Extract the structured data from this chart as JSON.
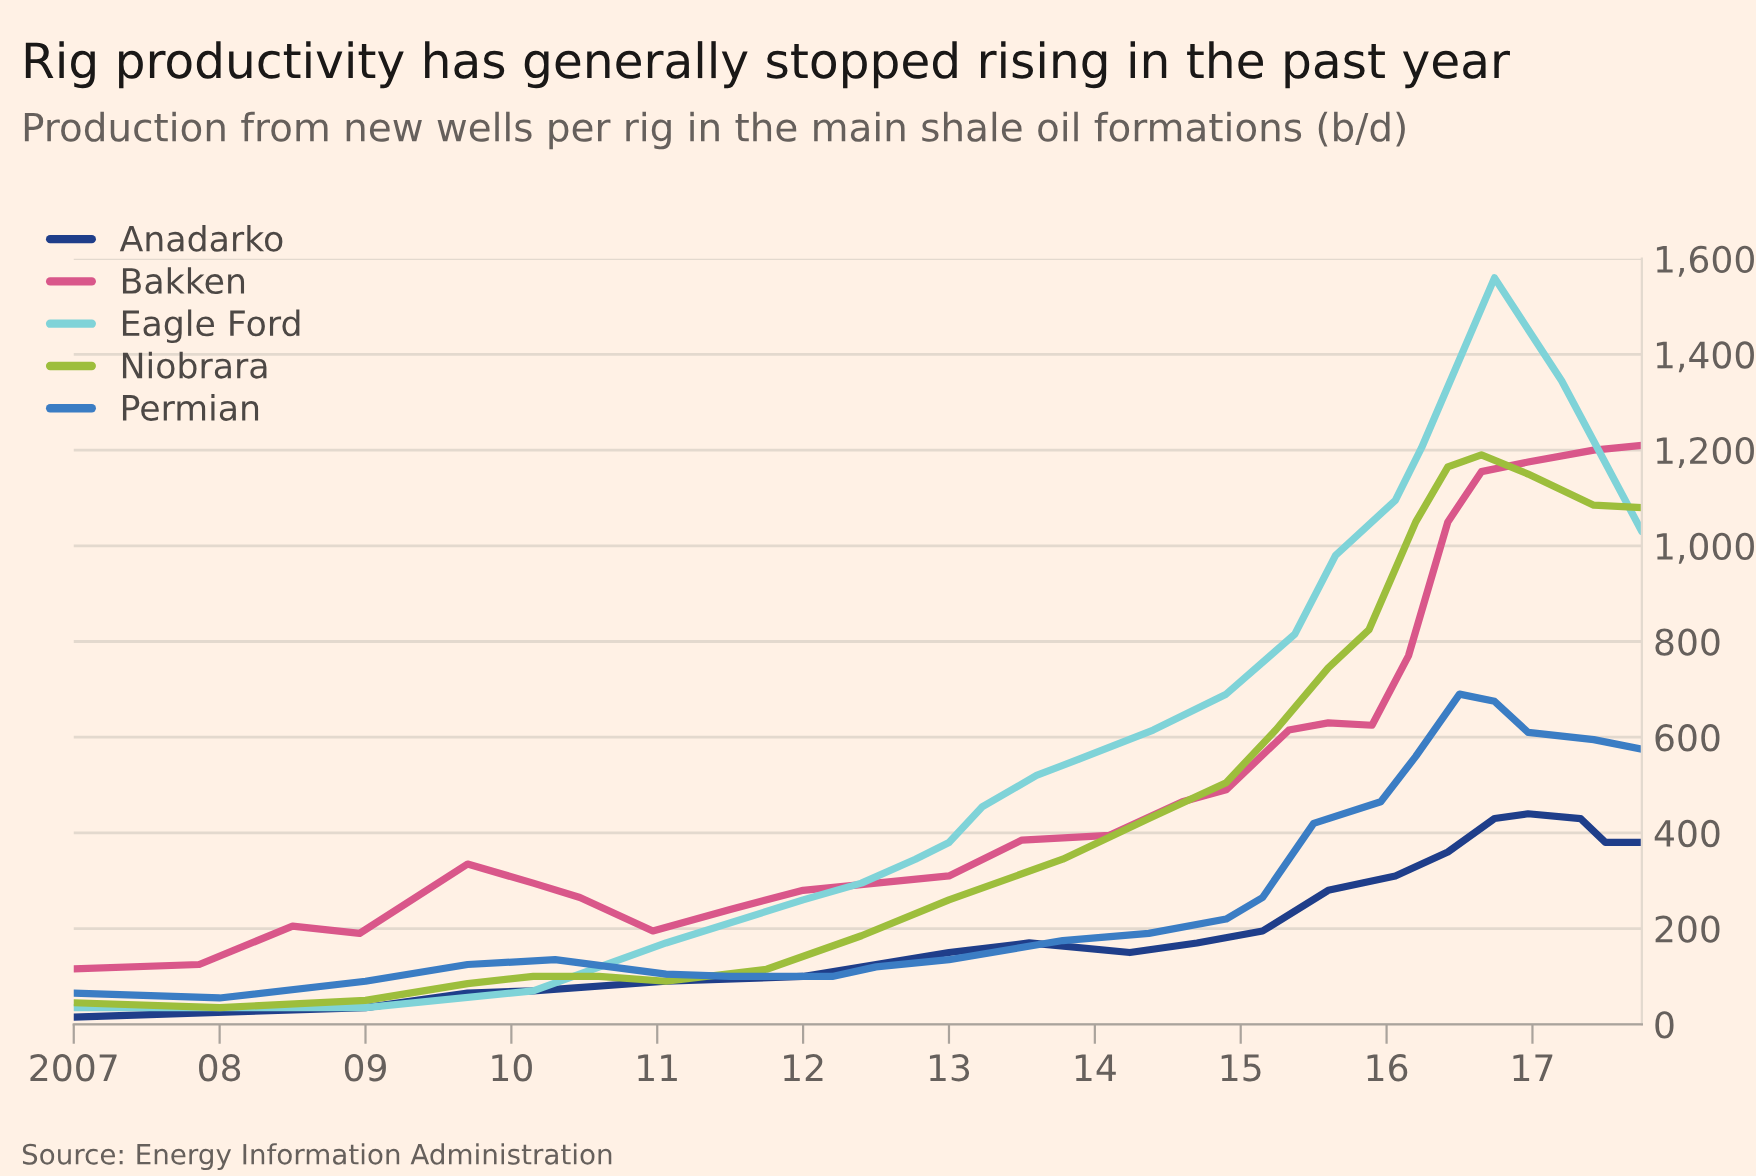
{
  "chart_data": {
    "type": "line",
    "title": "Rig productivity has generally stopped rising in the past year",
    "subtitle": "Production from new wells per rig in the main shale oil formations (b/d)",
    "annotations": [
      "Source: Energy Information Administration"
    ],
    "series": [
      {
        "name": "Anadarko",
        "color": "#1f3e8a",
        "x": [
          2007,
          2009,
          2009.7,
          2010.15,
          2011.06,
          2012,
          2012.5,
          2013,
          2013.55,
          2014.24,
          2014.7,
          2015.15,
          2015.6,
          2016.06,
          2016.42,
          2016.74,
          2016.97,
          2017.33,
          2017.5,
          2017.75
        ],
        "values": [
          15,
          35,
          65,
          70,
          90,
          100,
          125,
          150,
          170,
          150,
          170,
          195,
          280,
          310,
          360,
          430,
          440,
          430,
          380,
          380
        ]
      },
      {
        "name": "Bakken",
        "color": "#d9578a",
        "x": [
          2007,
          2007.86,
          2008.5,
          2008.96,
          2009.7,
          2010.15,
          2010.47,
          2010.97,
          2011.5,
          2012,
          2012.5,
          2013,
          2013.5,
          2014.1,
          2014.6,
          2014.9,
          2015.33,
          2015.6,
          2015.9,
          2016.15,
          2016.42,
          2016.65,
          2016.97,
          2017.42,
          2017.75
        ],
        "values": [
          116,
          125,
          205,
          190,
          335,
          295,
          265,
          195,
          240,
          280,
          295,
          310,
          385,
          395,
          465,
          490,
          615,
          630,
          625,
          770,
          1050,
          1155,
          1175,
          1200,
          1210
        ]
      },
      {
        "name": "Eagle Ford",
        "color": "#7fd3d8",
        "x": [
          2007,
          2009,
          2010.15,
          2011.06,
          2012,
          2012.4,
          2012.77,
          2013,
          2013.23,
          2013.6,
          2013.9,
          2014.4,
          2014.9,
          2015.37,
          2015.65,
          2016.06,
          2016.24,
          2016.74,
          2017.2,
          2017.75
        ],
        "values": [
          35,
          35,
          70,
          170,
          260,
          295,
          345,
          380,
          455,
          520,
          555,
          615,
          690,
          815,
          980,
          1095,
          1205,
          1560,
          1345,
          1030
        ]
      },
      {
        "name": "Niobrara",
        "color": "#9dbe3c",
        "x": [
          2007,
          2008,
          2009,
          2009.7,
          2010.15,
          2010.6,
          2011.06,
          2011.75,
          2012.4,
          2013,
          2013.78,
          2014.37,
          2014.9,
          2015.24,
          2015.6,
          2015.88,
          2016.2,
          2016.42,
          2016.65,
          2016.97,
          2017.42,
          2017.75
        ],
        "values": [
          45,
          35,
          50,
          85,
          100,
          100,
          90,
          115,
          185,
          260,
          345,
          430,
          505,
          615,
          745,
          825,
          1050,
          1165,
          1190,
          1150,
          1085,
          1080
        ]
      },
      {
        "name": "Permian",
        "color": "#3b7dc4",
        "x": [
          2007,
          2008,
          2009,
          2009.7,
          2010.3,
          2011.06,
          2011.5,
          2012.2,
          2012.5,
          2013,
          2013.78,
          2014.37,
          2014.9,
          2015.15,
          2015.5,
          2015.96,
          2016.2,
          2016.5,
          2016.74,
          2016.97,
          2017.42,
          2017.75
        ],
        "values": [
          65,
          55,
          90,
          125,
          135,
          105,
          100,
          100,
          120,
          135,
          175,
          190,
          220,
          265,
          420,
          465,
          560,
          690,
          675,
          610,
          595,
          575
        ]
      }
    ],
    "xlim": [
      2007,
      2017.75
    ],
    "xticks": [
      {
        "value": 2007,
        "label": "2007"
      },
      {
        "value": 2008,
        "label": "08"
      },
      {
        "value": 2009,
        "label": "09"
      },
      {
        "value": 2010,
        "label": "10"
      },
      {
        "value": 2011,
        "label": "11"
      },
      {
        "value": 2012,
        "label": "12"
      },
      {
        "value": 2013,
        "label": "13"
      },
      {
        "value": 2014,
        "label": "14"
      },
      {
        "value": 2015,
        "label": "15"
      },
      {
        "value": 2016,
        "label": "16"
      },
      {
        "value": 2017,
        "label": "17"
      }
    ],
    "ylim": [
      0,
      1600
    ],
    "yticks": [
      0,
      200,
      400,
      600,
      800,
      {
        "value": 1000,
        "label": "1,000"
      },
      {
        "value": 1200,
        "label": "1,200"
      },
      {
        "value": 1400,
        "label": "1,400"
      },
      {
        "value": 1600,
        "label": "1,600"
      }
    ],
    "grid": "y",
    "legend": "top left",
    "marker": "none",
    "line_style": "solid"
  }
}
